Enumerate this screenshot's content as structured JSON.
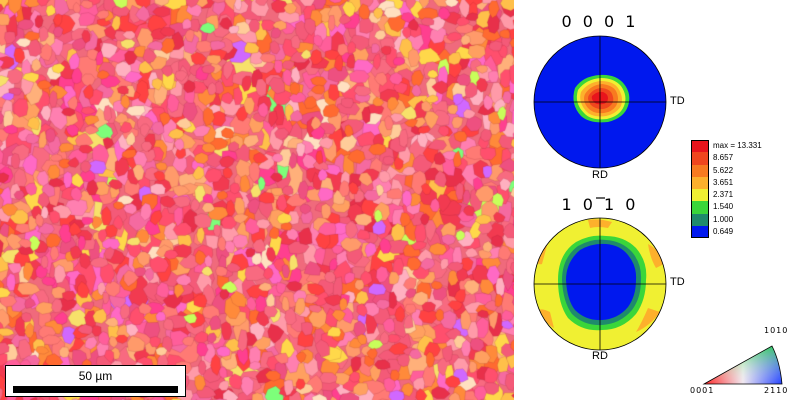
{
  "scale_bar": {
    "label": "50 µm"
  },
  "pole_figures": [
    {
      "title": "0001",
      "td_label": "TD",
      "rd_label": "RD"
    },
    {
      "title": "1010",
      "td_label": "TD",
      "rd_label": "RD"
    }
  ],
  "legend": {
    "entries": [
      {
        "label": "max = 13.331",
        "color": "#e8141c"
      },
      {
        "label": "8.657",
        "color": "#f0461e"
      },
      {
        "label": "5.622",
        "color": "#f87a20"
      },
      {
        "label": "3.651",
        "color": "#fdb02c"
      },
      {
        "label": "2.371",
        "color": "#f0f032"
      },
      {
        "label": "1.540",
        "color": "#3ad63a"
      },
      {
        "label": "1.000",
        "color": "#1f8a6c"
      },
      {
        "label": "0.649",
        "color": "#0018ee"
      }
    ]
  },
  "ipf_key": {
    "corner_0001": "0001",
    "corner_1010": "1010",
    "corner_2110": "2110"
  }
}
